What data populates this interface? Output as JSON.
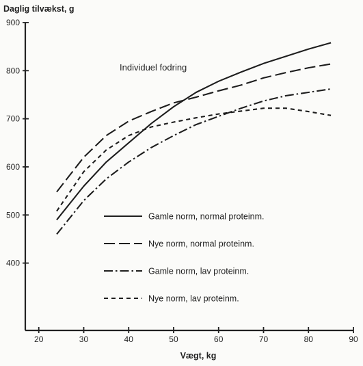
{
  "chart_data": {
    "type": "line",
    "ylabel": "Daglig tilvækst, g",
    "xlabel": "Vægt, kg",
    "annotation": "Individuel fodring",
    "xlim": [
      17,
      90
    ],
    "ylim": [
      260,
      900
    ],
    "xticks": [
      20,
      30,
      40,
      50,
      60,
      70,
      80,
      90
    ],
    "yticks": [
      400,
      500,
      600,
      700,
      800,
      900
    ],
    "grid": false,
    "legend_position": "inside lower-center",
    "series": [
      {
        "name": "Gamle norm, normal proteinm.",
        "dash": "solid",
        "x": [
          24,
          30,
          35,
          40,
          45,
          50,
          55,
          60,
          65,
          70,
          75,
          80,
          85
        ],
        "y": [
          490,
          560,
          610,
          650,
          690,
          725,
          755,
          778,
          797,
          815,
          830,
          845,
          858
        ]
      },
      {
        "name": "Nye norm, normal proteinm.",
        "dash": "long-dash",
        "x": [
          24,
          30,
          35,
          40,
          45,
          50,
          55,
          60,
          65,
          70,
          75,
          80,
          85
        ],
        "y": [
          548,
          620,
          665,
          695,
          715,
          733,
          745,
          758,
          770,
          785,
          796,
          806,
          814
        ]
      },
      {
        "name": "Gamle norm, lav proteinm.",
        "dash": "dash-dot",
        "x": [
          24,
          30,
          35,
          40,
          45,
          50,
          55,
          60,
          65,
          70,
          75,
          80,
          85
        ],
        "y": [
          460,
          530,
          575,
          610,
          640,
          665,
          688,
          705,
          722,
          737,
          748,
          755,
          762
        ]
      },
      {
        "name": "Nye norm, lav proteinm.",
        "dash": "short-dash",
        "x": [
          24,
          30,
          35,
          40,
          45,
          50,
          55,
          60,
          65,
          70,
          75,
          80,
          85
        ],
        "y": [
          508,
          590,
          635,
          665,
          683,
          693,
          702,
          710,
          716,
          722,
          722,
          715,
          707
        ]
      }
    ]
  }
}
